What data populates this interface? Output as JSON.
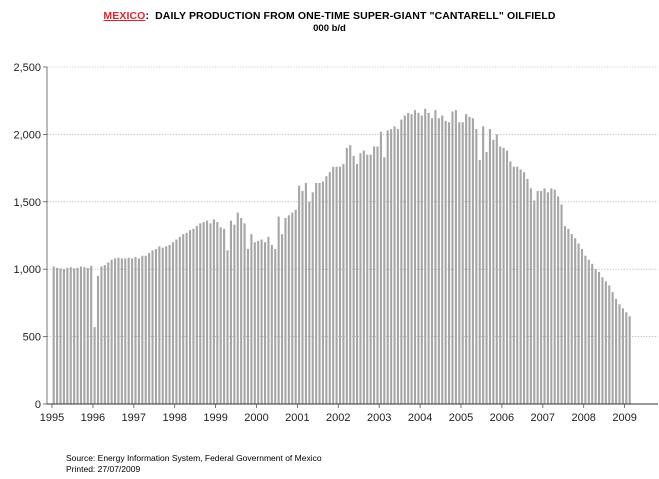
{
  "chart_data": {
    "type": "bar",
    "title_highlight": "MEXICO",
    "title": "DAILY PRODUCTION FROM ONE-TIME SUPER-GIANT \"CANTARELL\" OILFIELD",
    "subtitle": "000 b/d",
    "ylim": [
      0,
      2500
    ],
    "y_ticks": [
      0,
      500,
      1000,
      1500,
      2000,
      2500
    ],
    "y_tick_labels": [
      "0",
      "500",
      "1,000",
      "1,500",
      "2,000",
      "2,500"
    ],
    "x_ticks": [
      "1995",
      "1996",
      "1997",
      "1998",
      "1999",
      "2000",
      "2001",
      "2002",
      "2003",
      "2004",
      "2005",
      "2006",
      "2007",
      "2008",
      "2009"
    ],
    "x_start": "1995-01",
    "grid": true,
    "bar_color": "#a6a6a6",
    "values": [
      1020,
      1010,
      1005,
      1000,
      1010,
      1015,
      1005,
      1010,
      1020,
      1015,
      1010,
      1025,
      570,
      950,
      1020,
      1030,
      1050,
      1070,
      1080,
      1085,
      1080,
      1080,
      1085,
      1080,
      1090,
      1080,
      1100,
      1100,
      1120,
      1140,
      1150,
      1170,
      1160,
      1170,
      1180,
      1200,
      1220,
      1240,
      1260,
      1270,
      1290,
      1300,
      1320,
      1340,
      1350,
      1360,
      1340,
      1370,
      1350,
      1310,
      1300,
      1140,
      1360,
      1330,
      1420,
      1380,
      1340,
      1150,
      1260,
      1200,
      1210,
      1220,
      1200,
      1240,
      1180,
      1150,
      1390,
      1260,
      1380,
      1400,
      1420,
      1440,
      1620,
      1580,
      1640,
      1500,
      1570,
      1640,
      1640,
      1650,
      1690,
      1720,
      1760,
      1760,
      1760,
      1780,
      1900,
      1920,
      1840,
      1780,
      1860,
      1880,
      1850,
      1850,
      1910,
      1910,
      2020,
      1830,
      2030,
      2040,
      2060,
      2040,
      2110,
      2140,
      2160,
      2150,
      2180,
      2160,
      2140,
      2190,
      2160,
      2120,
      2180,
      2120,
      2140,
      2100,
      2090,
      2170,
      2180,
      2090,
      2090,
      2150,
      2130,
      2120,
      2040,
      1810,
      2060,
      1870,
      2040,
      1960,
      2000,
      1910,
      1900,
      1880,
      1800,
      1760,
      1760,
      1740,
      1720,
      1670,
      1600,
      1510,
      1580,
      1580,
      1600,
      1570,
      1600,
      1590,
      1540,
      1480,
      1320,
      1300,
      1260,
      1230,
      1190,
      1150,
      1100,
      1070,
      1040,
      1000,
      980,
      940,
      910,
      880,
      830,
      780,
      740,
      710,
      680,
      650
    ]
  },
  "source": "Source:  Energy Information System, Federal Government of Mexico",
  "printed": "Printed:  27/07/2009"
}
